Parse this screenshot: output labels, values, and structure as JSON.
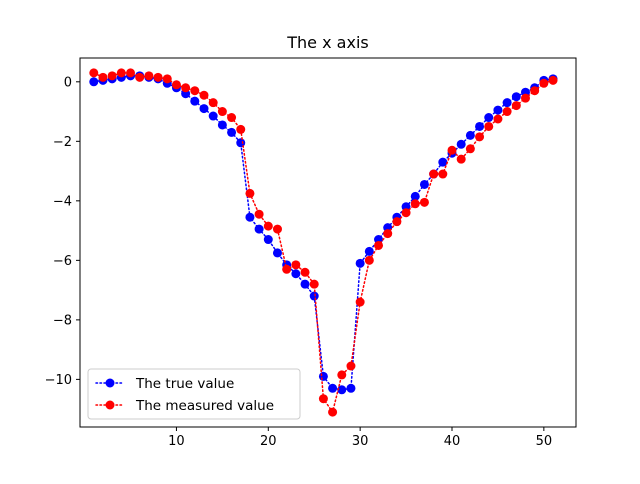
{
  "chart_data": {
    "type": "line",
    "title": "The x axis",
    "xlabel": "",
    "ylabel": "",
    "xlim": [
      -0.5,
      53.5
    ],
    "ylim": [
      -11.6,
      0.8
    ],
    "xticks": [
      10,
      20,
      30,
      40,
      50
    ],
    "yticks": [
      0,
      -2,
      -4,
      -6,
      -8,
      -10
    ],
    "ytick_labels": [
      "0",
      "−2",
      "−4",
      "−6",
      "−8",
      "−10"
    ],
    "grid": false,
    "legend_position": "lower-left",
    "x": [
      1,
      2,
      3,
      4,
      5,
      6,
      7,
      8,
      9,
      10,
      11,
      12,
      13,
      14,
      15,
      16,
      17,
      18,
      19,
      20,
      21,
      22,
      23,
      24,
      25,
      26,
      27,
      28,
      29,
      30,
      31,
      32,
      33,
      34,
      35,
      36,
      37,
      38,
      39,
      40,
      41,
      42,
      43,
      44,
      45,
      46,
      47,
      48,
      49,
      50,
      51
    ],
    "series": [
      {
        "name": "The true value",
        "color": "#0000ff",
        "linestyle": "dotted",
        "marker": "circle",
        "values": [
          0.0,
          0.05,
          0.1,
          0.15,
          0.2,
          0.2,
          0.15,
          0.1,
          -0.05,
          -0.2,
          -0.4,
          -0.65,
          -0.9,
          -1.15,
          -1.45,
          -1.7,
          -2.05,
          -4.55,
          -4.95,
          -5.3,
          -5.75,
          -6.15,
          -6.45,
          -6.8,
          -7.2,
          -9.9,
          -10.3,
          -10.35,
          -10.3,
          -6.1,
          -5.7,
          -5.3,
          -4.9,
          -4.55,
          -4.2,
          -3.85,
          -3.45,
          -3.1,
          -2.7,
          -2.4,
          -2.1,
          -1.8,
          -1.5,
          -1.2,
          -0.95,
          -0.7,
          -0.5,
          -0.35,
          -0.2,
          0.05,
          0.1
        ]
      },
      {
        "name": "The measured value",
        "color": "#ff0000",
        "linestyle": "dotted",
        "marker": "circle",
        "values": [
          0.3,
          0.15,
          0.2,
          0.3,
          0.3,
          0.15,
          0.2,
          0.15,
          0.1,
          -0.1,
          -0.2,
          -0.3,
          -0.45,
          -0.7,
          -1.0,
          -1.2,
          -1.6,
          -3.75,
          -4.45,
          -4.85,
          -4.95,
          -6.3,
          -6.15,
          -6.4,
          -6.8,
          -10.65,
          -11.1,
          -9.85,
          -9.55,
          -7.4,
          -6.0,
          -5.5,
          -5.1,
          -4.7,
          -4.4,
          -4.1,
          -4.05,
          -3.1,
          -3.1,
          -2.3,
          -2.6,
          -2.25,
          -1.85,
          -1.5,
          -1.25,
          -1.0,
          -0.8,
          -0.55,
          -0.3,
          -0.05,
          0.05
        ]
      }
    ]
  }
}
